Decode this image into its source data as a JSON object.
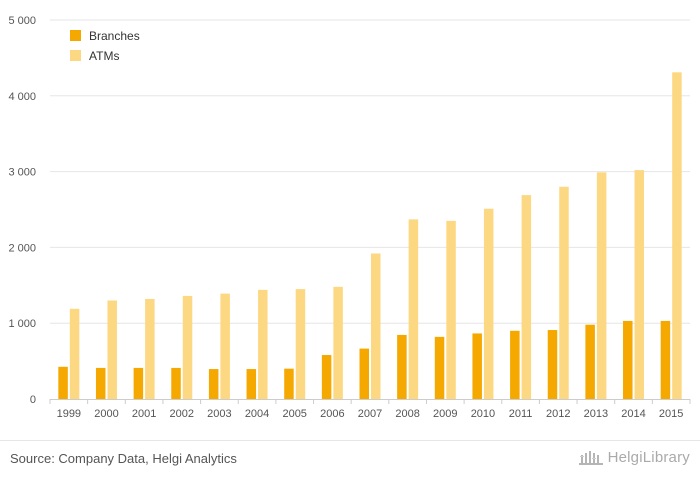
{
  "chart_data": {
    "type": "bar",
    "title": "",
    "xlabel": "",
    "ylabel": "",
    "categories": [
      "1999",
      "2000",
      "2001",
      "2002",
      "2003",
      "2004",
      "2005",
      "2006",
      "2007",
      "2008",
      "2009",
      "2010",
      "2011",
      "2012",
      "2013",
      "2014",
      "2015"
    ],
    "series": [
      {
        "name": "Branches",
        "color": "#f5a800",
        "values": [
          425,
          410,
          410,
          410,
          395,
          395,
          400,
          580,
          665,
          845,
          820,
          865,
          900,
          910,
          980,
          1030,
          1030
        ]
      },
      {
        "name": "ATMs",
        "color": "#fdd882",
        "values": [
          1190,
          1300,
          1320,
          1360,
          1390,
          1440,
          1450,
          1480,
          1920,
          2370,
          2350,
          2510,
          2690,
          2800,
          2990,
          3020,
          4310
        ]
      }
    ],
    "ylim": [
      0,
      5000
    ],
    "yticks": [
      0,
      1000,
      2000,
      3000,
      4000,
      5000
    ],
    "ytick_labels": [
      "0",
      "1 000",
      "2 000",
      "3 000",
      "4 000",
      "5 000"
    ],
    "grid": true,
    "legend_position": "top-left"
  },
  "footer": {
    "source": "Source: Company Data, Helgi Analytics",
    "brand": "HelgiLibrary"
  }
}
